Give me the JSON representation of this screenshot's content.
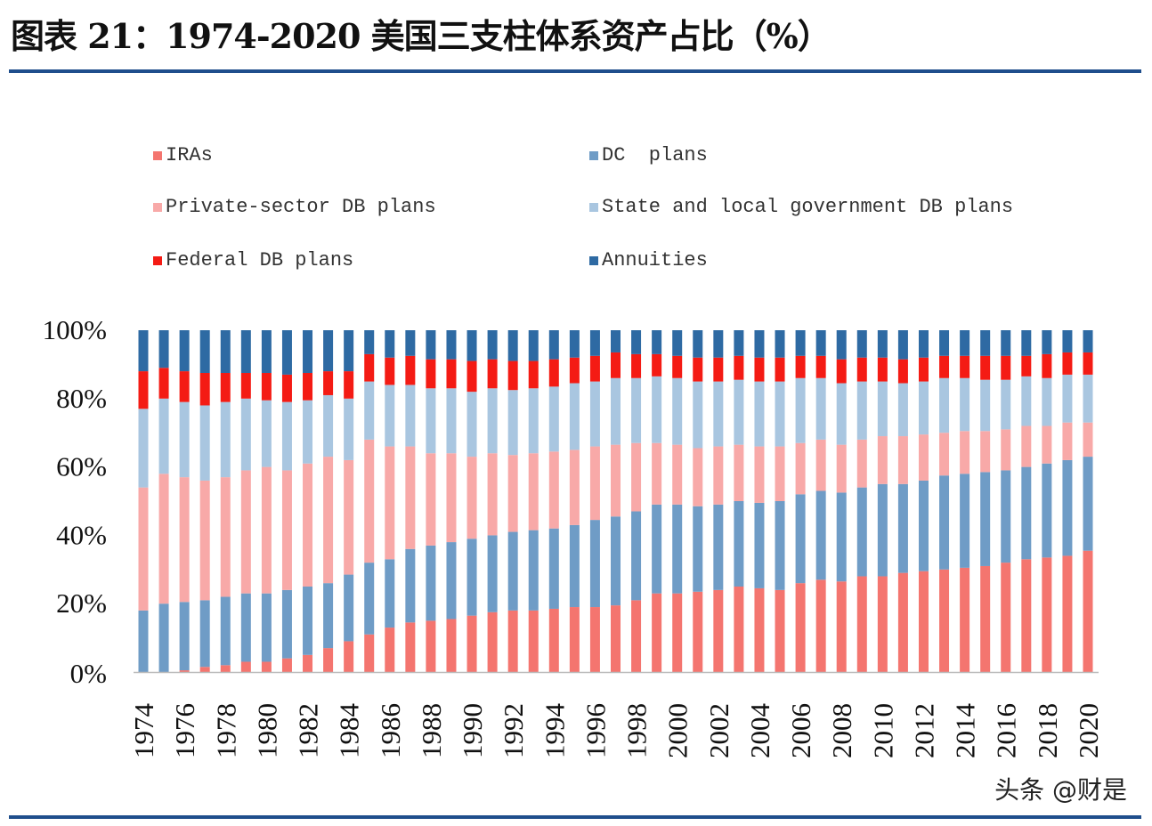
{
  "title": "图表 21：1974-2020 美国三支柱体系资产占比（%）",
  "watermark": "头条 @财是",
  "chart_data": {
    "type": "bar",
    "stacked": true,
    "title": "",
    "xlabel": "",
    "ylabel": "",
    "ylim": [
      0,
      100
    ],
    "y_ticks": [
      "0%",
      "20%",
      "40%",
      "60%",
      "80%",
      "100%"
    ],
    "grid": false,
    "legend_position": "top",
    "categories": [
      1974,
      1975,
      1976,
      1977,
      1978,
      1979,
      1980,
      1981,
      1982,
      1983,
      1984,
      1985,
      1986,
      1987,
      1988,
      1989,
      1990,
      1991,
      1992,
      1993,
      1994,
      1995,
      1996,
      1997,
      1998,
      1999,
      2000,
      2001,
      2002,
      2003,
      2004,
      2005,
      2006,
      2007,
      2008,
      2009,
      2010,
      2011,
      2012,
      2013,
      2014,
      2015,
      2016,
      2017,
      2018,
      2019,
      2020
    ],
    "x_tick_labels": [
      "1974",
      "1976",
      "1978",
      "1980",
      "1982",
      "1984",
      "1986",
      "1988",
      "1990",
      "1992",
      "1994",
      "1996",
      "1998",
      "2000",
      "2002",
      "2004",
      "2006",
      "2008",
      "2010",
      "2012",
      "2014",
      "2016",
      "2018",
      "2020"
    ],
    "series": [
      {
        "name": "IRAs",
        "color": "#f4756f",
        "values": [
          0,
          0,
          0.5,
          1.5,
          2,
          3,
          3,
          4,
          5,
          7,
          9,
          11,
          13,
          14.5,
          15,
          15.5,
          16.5,
          17.5,
          18,
          18,
          18.5,
          19,
          19,
          19.5,
          21,
          23,
          23,
          23.5,
          24,
          25,
          24.5,
          24,
          26,
          27,
          26.5,
          28,
          28,
          29,
          29.5,
          30,
          30.5,
          31,
          32,
          33,
          33.5,
          34,
          35.5
        ]
      },
      {
        "name": "DC  plans",
        "color": "#6f9cc6",
        "values": [
          18,
          20,
          20,
          19.5,
          20,
          20,
          20,
          20,
          20,
          19,
          19.5,
          21,
          20,
          21.5,
          22,
          22.5,
          22.5,
          22.5,
          23,
          23.5,
          23.5,
          24,
          25.5,
          26,
          26,
          26,
          26,
          25,
          25,
          25,
          25,
          26,
          26,
          26,
          26,
          26,
          27,
          26,
          26.5,
          27.5,
          27.5,
          27.5,
          27,
          27,
          27.5,
          28,
          27.5
        ]
      },
      {
        "name": "Private-sector DB plans",
        "color": "#f8a9a8",
        "values": [
          36,
          38,
          36.5,
          35,
          35,
          36,
          37,
          35,
          36,
          37,
          33.5,
          36,
          33,
          30,
          27,
          26,
          24,
          24,
          22.5,
          22.5,
          22.5,
          22,
          21.5,
          21,
          20,
          18,
          17.5,
          17,
          17,
          16.5,
          16.5,
          16,
          15,
          15,
          14,
          14,
          14,
          14,
          13.5,
          12.5,
          12.5,
          12,
          12,
          12,
          11,
          11,
          10
        ]
      },
      {
        "name": "State and local government DB plans",
        "color": "#a9c6e0",
        "values": [
          23,
          22,
          22,
          22,
          22,
          21,
          19.5,
          20,
          18.5,
          18,
          18,
          17,
          18,
          18,
          19,
          19,
          19,
          19,
          19,
          19,
          19,
          19.5,
          19,
          19.5,
          19,
          19.5,
          19.5,
          19.5,
          19,
          19,
          19,
          19,
          19,
          18,
          18,
          17,
          16,
          15.5,
          15.5,
          16,
          15.5,
          15,
          14.5,
          14.5,
          14,
          14,
          14
        ]
      },
      {
        "name": "Federal DB plans",
        "color": "#f41b14",
        "values": [
          11,
          9,
          9,
          9.5,
          8.5,
          7.5,
          8,
          8,
          8,
          7,
          8,
          8,
          8,
          8.5,
          8.5,
          8.5,
          9,
          8.5,
          8.5,
          8,
          8,
          7.5,
          7.5,
          7.5,
          7,
          6.5,
          6.5,
          7,
          7,
          7,
          7,
          7,
          6.5,
          6.5,
          7,
          7,
          7,
          7,
          7,
          6.5,
          6.5,
          7,
          7,
          6,
          7,
          6.5,
          6.5
        ]
      },
      {
        "name": "Annuities",
        "color": "#2e6aa3",
        "values": [
          12,
          11,
          12,
          12.5,
          12.5,
          12.5,
          12.5,
          13,
          12.5,
          12,
          12,
          7,
          8,
          7.5,
          8.5,
          8.5,
          9,
          8.5,
          9,
          9,
          8.5,
          8,
          7.5,
          6.5,
          7,
          7,
          7.5,
          8,
          8,
          7.5,
          8,
          8,
          7.5,
          7.5,
          8.5,
          8,
          8,
          8.5,
          8,
          7.5,
          7.5,
          7.5,
          7.5,
          7.5,
          7,
          6.5,
          6.5
        ]
      }
    ]
  }
}
